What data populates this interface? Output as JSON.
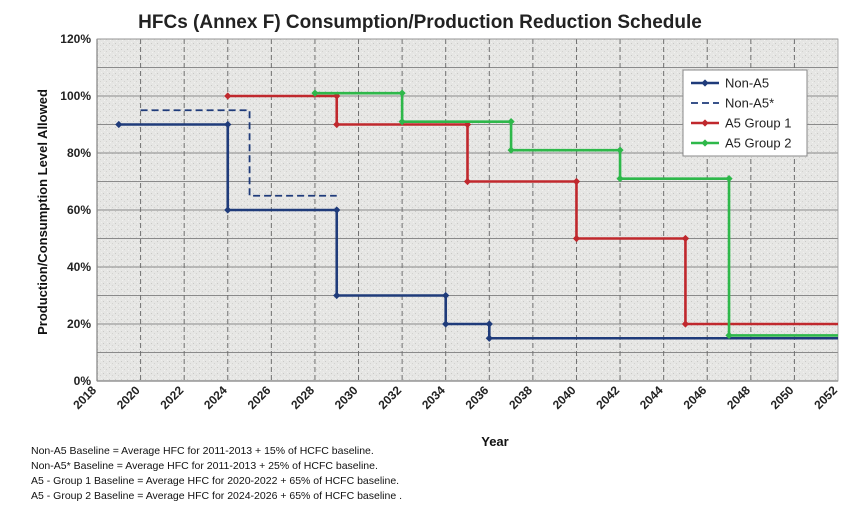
{
  "chart_data": {
    "type": "line",
    "title": "HFCs (Annex F) Consumption/Production Reduction Schedule",
    "xlabel": "Year",
    "ylabel": "Production/Consumption Level Allowed",
    "xlim": [
      2018,
      2052
    ],
    "ylim": [
      0,
      120
    ],
    "x_ticks": [
      "2018",
      "2020",
      "2022",
      "2024",
      "2026",
      "2028",
      "2030",
      "2032",
      "2034",
      "2036",
      "2038",
      "2040",
      "2042",
      "2044",
      "2046",
      "2048",
      "2050",
      "2052"
    ],
    "y_ticks": [
      "0%",
      "20%",
      "40%",
      "60%",
      "80%",
      "100%",
      "120%"
    ],
    "grid": true,
    "legend_position": "top-right",
    "series": [
      {
        "name": "Non-A5",
        "color": "#1f3b7a",
        "dashed": false,
        "points": [
          [
            2019,
            90
          ],
          [
            2024,
            90
          ],
          [
            2024,
            60
          ],
          [
            2029,
            60
          ],
          [
            2029,
            30
          ],
          [
            2034,
            30
          ],
          [
            2034,
            20
          ],
          [
            2036,
            20
          ],
          [
            2036,
            15
          ],
          [
            2052,
            15
          ]
        ],
        "markers": [
          [
            2019,
            90
          ],
          [
            2024,
            90
          ],
          [
            2024,
            60
          ],
          [
            2029,
            60
          ],
          [
            2029,
            30
          ],
          [
            2034,
            30
          ],
          [
            2034,
            20
          ],
          [
            2036,
            20
          ],
          [
            2036,
            15
          ]
        ]
      },
      {
        "name": "Non-A5*",
        "color": "#1f3b7a",
        "dashed": true,
        "points": [
          [
            2020,
            95
          ],
          [
            2025,
            95
          ],
          [
            2025,
            65
          ],
          [
            2029,
            65
          ]
        ],
        "markers": []
      },
      {
        "name": "A5 Group 1",
        "color": "#c0282d",
        "dashed": false,
        "points": [
          [
            2024,
            100
          ],
          [
            2029,
            100
          ],
          [
            2029,
            90
          ],
          [
            2035,
            90
          ],
          [
            2035,
            70
          ],
          [
            2040,
            70
          ],
          [
            2040,
            50
          ],
          [
            2045,
            50
          ],
          [
            2045,
            20
          ],
          [
            2052,
            20
          ]
        ],
        "markers": [
          [
            2024,
            100
          ],
          [
            2029,
            100
          ],
          [
            2029,
            90
          ],
          [
            2035,
            90
          ],
          [
            2035,
            70
          ],
          [
            2040,
            70
          ],
          [
            2040,
            50
          ],
          [
            2045,
            50
          ],
          [
            2045,
            20
          ]
        ]
      },
      {
        "name": "A5 Group 2",
        "color": "#2eb84a",
        "dashed": false,
        "points": [
          [
            2028,
            101
          ],
          [
            2032,
            101
          ],
          [
            2032,
            91
          ],
          [
            2037,
            91
          ],
          [
            2037,
            81
          ],
          [
            2042,
            81
          ],
          [
            2042,
            71
          ],
          [
            2047,
            71
          ],
          [
            2047,
            16
          ],
          [
            2052,
            16
          ]
        ],
        "markers": [
          [
            2028,
            101
          ],
          [
            2032,
            101
          ],
          [
            2032,
            91
          ],
          [
            2037,
            91
          ],
          [
            2037,
            81
          ],
          [
            2042,
            81
          ],
          [
            2042,
            71
          ],
          [
            2047,
            71
          ],
          [
            2047,
            16
          ]
        ]
      }
    ]
  },
  "footnotes": [
    "Non-A5 Baseline =  Average HFC for 2011-2013 + 15% of HCFC baseline.",
    "Non-A5* Baseline = Average HFC for 2011-2013 + 25% of HCFC baseline.",
    "A5  - Group 1 Baseline = Average HFC for 2020-2022 + 65% of HCFC baseline.",
    "A5  - Group 2 Baseline = Average HFC for 2024-2026 + 65% of HCFC baseline ."
  ]
}
